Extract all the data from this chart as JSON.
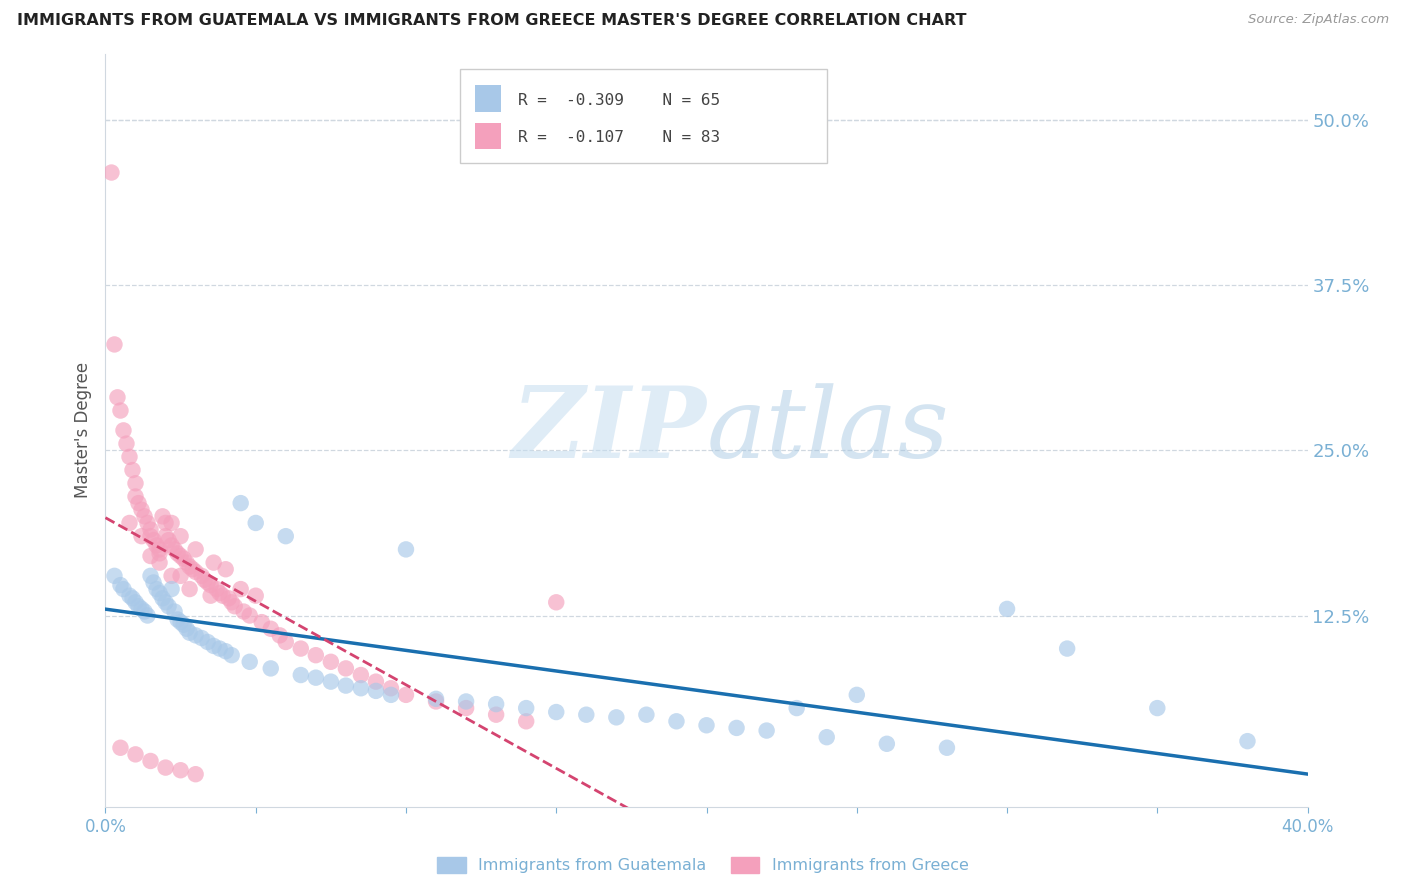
{
  "title": "IMMIGRANTS FROM GUATEMALA VS IMMIGRANTS FROM GREECE MASTER'S DEGREE CORRELATION CHART",
  "source_text": "Source: ZipAtlas.com",
  "ylabel": "Master's Degree",
  "xlim": [
    0.0,
    0.4
  ],
  "ylim": [
    -0.02,
    0.55
  ],
  "yticks_right": [
    0.125,
    0.25,
    0.375,
    0.5
  ],
  "ytick_right_labels": [
    "12.5%",
    "25.0%",
    "37.5%",
    "50.0%"
  ],
  "legend_r1": "-0.309",
  "legend_n1": "65",
  "legend_r2": "-0.107",
  "legend_n2": "83",
  "color_blue": "#a8c8e8",
  "color_pink": "#f4a0bc",
  "color_trendline_blue": "#1a6faf",
  "color_trendline_pink": "#d44470",
  "color_axis": "#7ab0d4",
  "watermark_zip": "#c8dff0",
  "watermark_atlas": "#a8c8e0",
  "guatemala_x": [
    0.003,
    0.005,
    0.006,
    0.008,
    0.009,
    0.01,
    0.011,
    0.012,
    0.013,
    0.014,
    0.015,
    0.016,
    0.017,
    0.018,
    0.019,
    0.02,
    0.021,
    0.022,
    0.023,
    0.024,
    0.025,
    0.026,
    0.027,
    0.028,
    0.03,
    0.032,
    0.034,
    0.036,
    0.038,
    0.04,
    0.042,
    0.045,
    0.048,
    0.05,
    0.055,
    0.06,
    0.065,
    0.07,
    0.075,
    0.08,
    0.085,
    0.09,
    0.095,
    0.1,
    0.11,
    0.12,
    0.13,
    0.14,
    0.15,
    0.16,
    0.17,
    0.18,
    0.19,
    0.2,
    0.21,
    0.22,
    0.23,
    0.24,
    0.25,
    0.26,
    0.28,
    0.3,
    0.32,
    0.35,
    0.38
  ],
  "guatemala_y": [
    0.155,
    0.148,
    0.145,
    0.14,
    0.138,
    0.135,
    0.132,
    0.13,
    0.128,
    0.125,
    0.155,
    0.15,
    0.145,
    0.142,
    0.138,
    0.135,
    0.132,
    0.145,
    0.128,
    0.122,
    0.12,
    0.118,
    0.115,
    0.112,
    0.11,
    0.108,
    0.105,
    0.102,
    0.1,
    0.098,
    0.095,
    0.21,
    0.09,
    0.195,
    0.085,
    0.185,
    0.08,
    0.078,
    0.075,
    0.072,
    0.07,
    0.068,
    0.065,
    0.175,
    0.062,
    0.06,
    0.058,
    0.055,
    0.052,
    0.05,
    0.048,
    0.05,
    0.045,
    0.042,
    0.04,
    0.038,
    0.055,
    0.033,
    0.065,
    0.028,
    0.025,
    0.13,
    0.1,
    0.055,
    0.03
  ],
  "greece_x": [
    0.002,
    0.003,
    0.004,
    0.005,
    0.006,
    0.007,
    0.008,
    0.009,
    0.01,
    0.01,
    0.011,
    0.012,
    0.013,
    0.014,
    0.015,
    0.015,
    0.016,
    0.017,
    0.018,
    0.018,
    0.019,
    0.02,
    0.02,
    0.021,
    0.022,
    0.022,
    0.023,
    0.024,
    0.025,
    0.025,
    0.026,
    0.027,
    0.028,
    0.029,
    0.03,
    0.03,
    0.032,
    0.033,
    0.034,
    0.035,
    0.036,
    0.037,
    0.038,
    0.039,
    0.04,
    0.041,
    0.042,
    0.043,
    0.045,
    0.046,
    0.048,
    0.05,
    0.052,
    0.055,
    0.058,
    0.06,
    0.065,
    0.07,
    0.075,
    0.08,
    0.085,
    0.09,
    0.095,
    0.1,
    0.11,
    0.12,
    0.13,
    0.14,
    0.015,
    0.025,
    0.035,
    0.008,
    0.012,
    0.018,
    0.022,
    0.028,
    0.005,
    0.01,
    0.15,
    0.015,
    0.02,
    0.025,
    0.03
  ],
  "greece_y": [
    0.46,
    0.33,
    0.29,
    0.28,
    0.265,
    0.255,
    0.245,
    0.235,
    0.225,
    0.215,
    0.21,
    0.205,
    0.2,
    0.195,
    0.19,
    0.185,
    0.182,
    0.178,
    0.175,
    0.172,
    0.2,
    0.195,
    0.185,
    0.182,
    0.178,
    0.195,
    0.175,
    0.172,
    0.185,
    0.17,
    0.168,
    0.165,
    0.162,
    0.16,
    0.175,
    0.158,
    0.155,
    0.152,
    0.15,
    0.148,
    0.165,
    0.145,
    0.142,
    0.14,
    0.16,
    0.138,
    0.135,
    0.132,
    0.145,
    0.128,
    0.125,
    0.14,
    0.12,
    0.115,
    0.11,
    0.105,
    0.1,
    0.095,
    0.09,
    0.085,
    0.08,
    0.075,
    0.07,
    0.065,
    0.06,
    0.055,
    0.05,
    0.045,
    0.17,
    0.155,
    0.14,
    0.195,
    0.185,
    0.165,
    0.155,
    0.145,
    0.025,
    0.02,
    0.135,
    0.015,
    0.01,
    0.008,
    0.005
  ]
}
